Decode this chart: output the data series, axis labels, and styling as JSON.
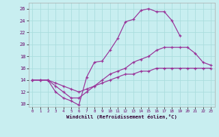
{
  "xlabel": "Windchill (Refroidissement éolien,°C)",
  "bg_color": "#c8eef0",
  "grid_color": "#b0dde0",
  "line_color": "#993399",
  "xmin": 0,
  "xmax": 23,
  "ymin": 9.5,
  "ymax": 27,
  "yticks": [
    10,
    12,
    14,
    16,
    18,
    20,
    22,
    24,
    26
  ],
  "xticks": [
    0,
    1,
    2,
    3,
    4,
    5,
    6,
    7,
    8,
    9,
    10,
    11,
    12,
    13,
    14,
    15,
    16,
    17,
    18,
    19,
    20,
    21,
    22,
    23
  ],
  "line1_x": [
    0,
    1,
    2,
    3,
    4,
    5,
    6,
    7,
    8,
    9,
    10,
    11,
    12,
    13,
    14,
    15,
    16,
    17,
    18,
    19
  ],
  "line1_y": [
    14,
    14,
    14,
    12,
    11,
    10.5,
    9.8,
    14.5,
    17,
    17.2,
    19,
    21,
    23.8,
    24.2,
    25.7,
    26,
    25.5,
    25.5,
    24,
    21.5
  ],
  "line2_x": [
    0,
    1,
    2,
    3,
    4,
    5,
    6,
    7,
    8,
    9,
    10,
    11,
    12,
    13,
    14,
    15,
    16,
    17,
    18,
    19,
    20,
    21,
    22,
    23
  ],
  "line2_y": [
    14,
    14,
    14,
    13,
    12,
    11,
    11,
    12,
    13,
    14,
    15,
    15.5,
    16,
    17,
    17.5,
    18,
    19,
    19.5,
    19.5,
    19.5,
    19.5,
    18.5,
    17,
    16.5
  ],
  "line3_x": [
    0,
    1,
    2,
    3,
    4,
    5,
    6,
    7,
    8,
    9,
    10,
    11,
    12,
    13,
    14,
    15,
    16,
    17,
    18,
    19,
    20,
    21,
    22,
    23
  ],
  "line3_y": [
    14,
    14,
    14,
    13.5,
    13,
    12.5,
    12,
    12.5,
    13,
    13.5,
    14,
    14.5,
    15,
    15,
    15.5,
    15.5,
    16,
    16,
    16,
    16,
    16,
    16,
    16,
    16
  ]
}
